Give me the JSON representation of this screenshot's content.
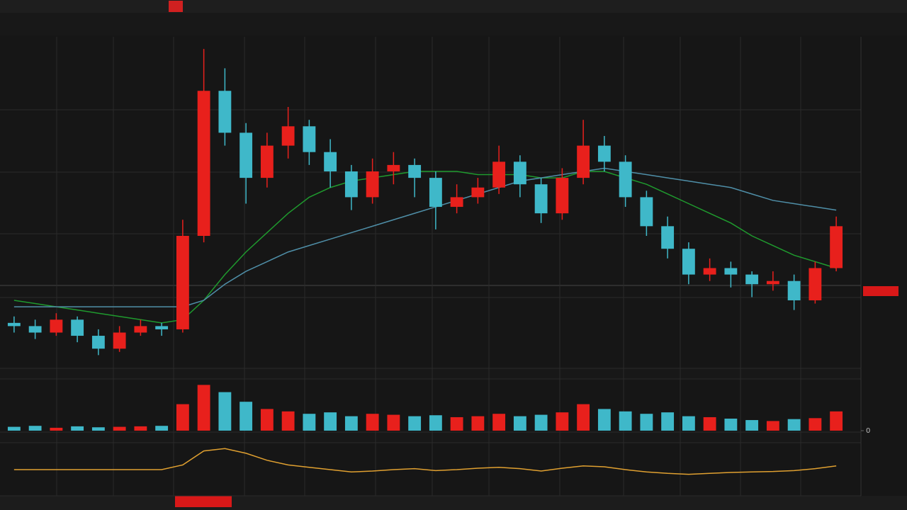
{
  "chart_data": {
    "type": "candlestick",
    "ylim": [
      0,
      100
    ],
    "up_color": "#e8201c",
    "down_color": "#3fb8c9",
    "candles": [
      [
        13,
        15,
        10,
        12
      ],
      [
        12,
        14,
        8,
        10
      ],
      [
        10,
        16,
        9,
        14
      ],
      [
        14,
        15,
        7,
        9
      ],
      [
        9,
        11,
        3,
        5
      ],
      [
        5,
        12,
        4,
        10
      ],
      [
        10,
        14,
        9,
        12
      ],
      [
        12,
        13,
        9,
        11
      ],
      [
        11,
        45,
        10,
        40
      ],
      [
        40,
        98,
        38,
        85
      ],
      [
        85,
        92,
        68,
        72
      ],
      [
        72,
        75,
        50,
        58
      ],
      [
        58,
        72,
        55,
        68
      ],
      [
        68,
        80,
        64,
        74
      ],
      [
        74,
        76,
        62,
        66
      ],
      [
        66,
        70,
        55,
        60
      ],
      [
        60,
        62,
        48,
        52
      ],
      [
        52,
        64,
        50,
        60
      ],
      [
        60,
        66,
        56,
        62
      ],
      [
        62,
        64,
        52,
        58
      ],
      [
        58,
        60,
        42,
        49
      ],
      [
        49,
        56,
        47,
        52
      ],
      [
        52,
        58,
        50,
        55
      ],
      [
        55,
        68,
        53,
        63
      ],
      [
        63,
        65,
        52,
        56
      ],
      [
        56,
        58,
        44,
        47
      ],
      [
        47,
        61,
        45,
        58
      ],
      [
        58,
        76,
        56,
        68
      ],
      [
        68,
        71,
        60,
        63
      ],
      [
        63,
        65,
        49,
        52
      ],
      [
        52,
        54,
        40,
        43
      ],
      [
        43,
        46,
        33,
        36
      ],
      [
        36,
        38,
        25,
        28
      ],
      [
        28,
        33,
        26,
        30
      ],
      [
        30,
        32,
        24,
        28
      ],
      [
        28,
        29,
        21,
        25
      ],
      [
        25,
        29,
        23,
        26
      ],
      [
        26,
        28,
        17,
        20
      ],
      [
        20,
        32,
        19,
        30
      ],
      [
        30,
        46,
        29,
        43
      ]
    ],
    "series": [
      {
        "color": "#1f9a2e",
        "values": [
          20,
          19,
          18,
          17,
          16,
          15,
          14,
          13,
          14,
          20,
          28,
          35,
          41,
          47,
          52,
          55,
          57,
          58,
          59,
          60,
          60,
          60,
          59,
          59,
          59,
          58,
          58,
          60,
          60,
          58,
          56,
          53,
          50,
          47,
          44,
          40,
          37,
          34,
          32,
          30
        ]
      },
      {
        "color": "#4f8fa8",
        "values": [
          18,
          18,
          18,
          18,
          18,
          18,
          18,
          18,
          18,
          20,
          25,
          29,
          32,
          35,
          37,
          39,
          41,
          43,
          45,
          47,
          49,
          51,
          53,
          55,
          57,
          58,
          59,
          60,
          61,
          60,
          59,
          58,
          57,
          56,
          55,
          53,
          51,
          50,
          49,
          48
        ]
      }
    ],
    "volume": {
      "ylim": [
        0,
        100
      ],
      "yticks": [
        0
      ],
      "values": [
        8,
        10,
        6,
        9,
        7,
        8,
        9,
        10,
        55,
        95,
        80,
        60,
        45,
        40,
        35,
        38,
        30,
        35,
        33,
        30,
        32,
        28,
        30,
        35,
        30,
        33,
        38,
        55,
        45,
        40,
        35,
        38,
        30,
        28,
        25,
        22,
        20,
        24,
        26,
        40
      ]
    },
    "macd": {
      "ylim": [
        -50,
        50
      ],
      "color": "#e0a030",
      "values": [
        0,
        0,
        0,
        0,
        0,
        0,
        0,
        0,
        10,
        40,
        45,
        35,
        20,
        10,
        5,
        0,
        -5,
        -3,
        0,
        2,
        -2,
        0,
        3,
        5,
        2,
        -3,
        3,
        8,
        6,
        0,
        -5,
        -8,
        -10,
        -8,
        -6,
        -5,
        -4,
        -2,
        2,
        8
      ]
    }
  }
}
